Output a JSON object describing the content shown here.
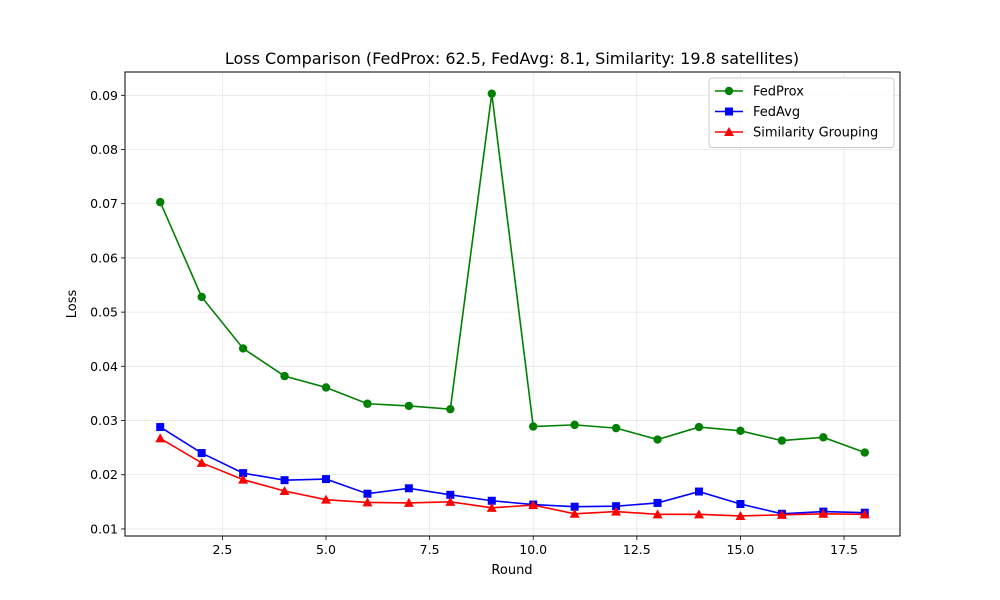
{
  "chart_data": {
    "type": "line",
    "title": "Loss Comparison (FedProx: 62.5, FedAvg: 8.1, Similarity: 19.8 satellites)",
    "xlabel": "Round",
    "ylabel": "Loss",
    "xlim": [
      0.15,
      18.85
    ],
    "ylim": [
      0.0087,
      0.0943
    ],
    "xticks": [
      2.5,
      5.0,
      7.5,
      10.0,
      12.5,
      15.0,
      17.5
    ],
    "xtick_labels": [
      "2.5",
      "5.0",
      "7.5",
      "10.0",
      "12.5",
      "15.0",
      "17.5"
    ],
    "yticks": [
      0.01,
      0.02,
      0.03,
      0.04,
      0.05,
      0.06,
      0.07,
      0.08,
      0.09
    ],
    "ytick_labels": [
      "0.01",
      "0.02",
      "0.03",
      "0.04",
      "0.05",
      "0.06",
      "0.07",
      "0.08",
      "0.09"
    ],
    "grid": true,
    "legend_position": "top-right",
    "x": [
      1,
      2,
      3,
      4,
      5,
      6,
      7,
      8,
      9,
      10,
      11,
      12,
      13,
      14,
      15,
      16,
      17,
      18
    ],
    "series": [
      {
        "name": "FedProx",
        "color": "#008000",
        "marker": "circle",
        "values": [
          0.0703,
          0.0528,
          0.0433,
          0.0382,
          0.0361,
          0.0331,
          0.0327,
          0.0321,
          0.0903,
          0.0289,
          0.0292,
          0.0286,
          0.0265,
          0.0288,
          0.0281,
          0.0263,
          0.0269,
          0.0241
        ]
      },
      {
        "name": "FedAvg",
        "color": "#0000ff",
        "marker": "square",
        "values": [
          0.0288,
          0.024,
          0.0203,
          0.019,
          0.0192,
          0.0165,
          0.0175,
          0.0163,
          0.0152,
          0.0145,
          0.0141,
          0.0142,
          0.0148,
          0.0169,
          0.0146,
          0.0128,
          0.0132,
          0.013
        ]
      },
      {
        "name": "Similarity Grouping",
        "color": "#ff0000",
        "marker": "triangle",
        "values": [
          0.0267,
          0.0222,
          0.0191,
          0.017,
          0.0154,
          0.0149,
          0.0148,
          0.015,
          0.0139,
          0.0144,
          0.0128,
          0.0132,
          0.0127,
          0.0127,
          0.0124,
          0.0126,
          0.0128,
          0.0127
        ]
      }
    ]
  }
}
